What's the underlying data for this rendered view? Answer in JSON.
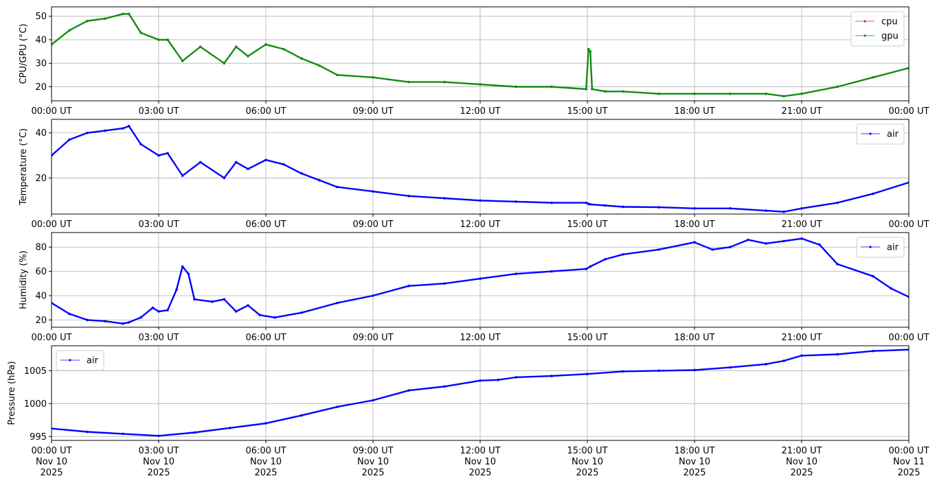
{
  "colors": {
    "cpu": "#d62728",
    "gpu": "#138a13",
    "air": "#0000ff",
    "grid": "#b0b0b0"
  },
  "chart_data": [
    {
      "type": "line",
      "ylabel": "CPU/GPU (°C)",
      "ylim": [
        14,
        54
      ],
      "yticks": [
        20,
        30,
        40,
        50
      ],
      "grid": true,
      "legend_position": "top-right",
      "x": [
        "00:00",
        "00:30",
        "01:00",
        "01:30",
        "02:00",
        "02:10",
        "02:30",
        "03:00",
        "03:15",
        "03:40",
        "04:10",
        "04:50",
        "05:10",
        "05:30",
        "06:00",
        "06:30",
        "07:00",
        "07:30",
        "08:00",
        "09:00",
        "10:00",
        "11:00",
        "12:00",
        "13:00",
        "14:00",
        "14:58",
        "15:02",
        "15:05",
        "15:08",
        "15:30",
        "16:00",
        "17:00",
        "18:00",
        "19:00",
        "20:00",
        "20:30",
        "21:00",
        "22:00",
        "23:00",
        "24:00"
      ],
      "series": [
        {
          "name": "cpu",
          "values": [
            38,
            44,
            48,
            49,
            51,
            51,
            43,
            40,
            40,
            31,
            37,
            30,
            37,
            33,
            38,
            36,
            32,
            29,
            25,
            24,
            22,
            22,
            21,
            20,
            20,
            19,
            36,
            35,
            19,
            18,
            18,
            17,
            17,
            17,
            17,
            16,
            17,
            20,
            24,
            28
          ]
        },
        {
          "name": "gpu",
          "values": [
            38,
            44,
            48,
            49,
            51,
            51,
            43,
            40,
            40,
            31,
            37,
            30,
            37,
            33,
            38,
            36,
            32,
            29,
            25,
            24,
            22,
            22,
            21,
            20,
            20,
            19,
            36,
            35,
            19,
            18,
            18,
            17,
            17,
            17,
            17,
            16,
            17,
            20,
            24,
            28
          ]
        }
      ]
    },
    {
      "type": "line",
      "ylabel": "Temperature (°C)",
      "ylim": [
        4,
        46
      ],
      "yticks": [
        20,
        40
      ],
      "grid": true,
      "legend_position": "top-right",
      "x": [
        "00:00",
        "00:30",
        "01:00",
        "01:30",
        "02:00",
        "02:10",
        "02:30",
        "03:00",
        "03:15",
        "03:40",
        "04:10",
        "04:50",
        "05:10",
        "05:30",
        "06:00",
        "06:30",
        "07:00",
        "07:30",
        "08:00",
        "09:00",
        "10:00",
        "11:00",
        "12:00",
        "13:00",
        "14:00",
        "14:58",
        "15:02",
        "15:05",
        "15:30",
        "16:00",
        "17:00",
        "18:00",
        "19:00",
        "20:00",
        "20:30",
        "21:00",
        "22:00",
        "23:00",
        "24:00"
      ],
      "series": [
        {
          "name": "air",
          "values": [
            30,
            37,
            40,
            41,
            42,
            43,
            35,
            30,
            31,
            21,
            27,
            20,
            27,
            24,
            28,
            26,
            22,
            19,
            16,
            14,
            12,
            11,
            10,
            9.5,
            9,
            9,
            8.5,
            8.3,
            7.8,
            7.2,
            7,
            6.5,
            6.5,
            5.5,
            5,
            6.5,
            9,
            13,
            18
          ]
        }
      ]
    },
    {
      "type": "line",
      "ylabel": "Humidity (%)",
      "ylim": [
        14,
        92
      ],
      "yticks": [
        20,
        40,
        60,
        80
      ],
      "grid": true,
      "legend_position": "top-right",
      "x": [
        "00:00",
        "00:30",
        "01:00",
        "01:30",
        "02:00",
        "02:10",
        "02:30",
        "02:50",
        "03:00",
        "03:15",
        "03:30",
        "03:40",
        "03:50",
        "04:00",
        "04:30",
        "04:50",
        "05:10",
        "05:30",
        "05:50",
        "06:15",
        "07:00",
        "08:00",
        "09:00",
        "10:00",
        "11:00",
        "12:00",
        "13:00",
        "14:00",
        "14:58",
        "15:05",
        "15:30",
        "16:00",
        "17:00",
        "18:00",
        "18:30",
        "19:00",
        "19:30",
        "20:00",
        "20:30",
        "21:00",
        "21:30",
        "22:00",
        "23:00",
        "23:30",
        "24:00"
      ],
      "series": [
        {
          "name": "air",
          "values": [
            34,
            25,
            20,
            19,
            17,
            18,
            22,
            30,
            27,
            28,
            45,
            64,
            58,
            37,
            35,
            37,
            27,
            32,
            24,
            22,
            26,
            34,
            40,
            48,
            50,
            54,
            58,
            60,
            62,
            64,
            70,
            74,
            78,
            84,
            78,
            80,
            86,
            83,
            85,
            87,
            82,
            66,
            56,
            46,
            39
          ]
        }
      ]
    },
    {
      "type": "line",
      "ylabel": "Pressure (hPa)",
      "ylim": [
        994.4,
        1008.8
      ],
      "yticks": [
        995,
        1000,
        1005
      ],
      "grid": true,
      "legend_position": "top-left",
      "x": [
        "00:00",
        "01:00",
        "02:00",
        "03:00",
        "04:00",
        "05:00",
        "06:00",
        "07:00",
        "08:00",
        "09:00",
        "10:00",
        "11:00",
        "12:00",
        "12:30",
        "13:00",
        "14:00",
        "15:00",
        "16:00",
        "17:00",
        "18:00",
        "19:00",
        "20:00",
        "20:30",
        "21:00",
        "22:00",
        "23:00",
        "24:00"
      ],
      "series": [
        {
          "name": "air",
          "values": [
            996.2,
            995.7,
            995.4,
            995.1,
            995.6,
            996.3,
            997,
            998.2,
            999.5,
            1000.5,
            1002,
            1002.6,
            1003.5,
            1003.6,
            1004,
            1004.2,
            1004.5,
            1004.9,
            1005,
            1005.1,
            1005.5,
            1006,
            1006.5,
            1007.3,
            1007.5,
            1008,
            1008.2
          ]
        }
      ]
    }
  ],
  "xaxis": {
    "ticks": [
      "00:00 UT",
      "03:00 UT",
      "06:00 UT",
      "09:00 UT",
      "12:00 UT",
      "15:00 UT",
      "18:00 UT",
      "21:00 UT",
      "00:00 UT"
    ],
    "bottom_dates": [
      "Nov 10",
      "Nov 10",
      "Nov 10",
      "Nov 10",
      "Nov 10",
      "Nov 10",
      "Nov 10",
      "Nov 10",
      "Nov 11"
    ],
    "bottom_years": [
      "2025",
      "2025",
      "2025",
      "2025",
      "2025",
      "2025",
      "2025",
      "2025",
      "2025"
    ]
  }
}
